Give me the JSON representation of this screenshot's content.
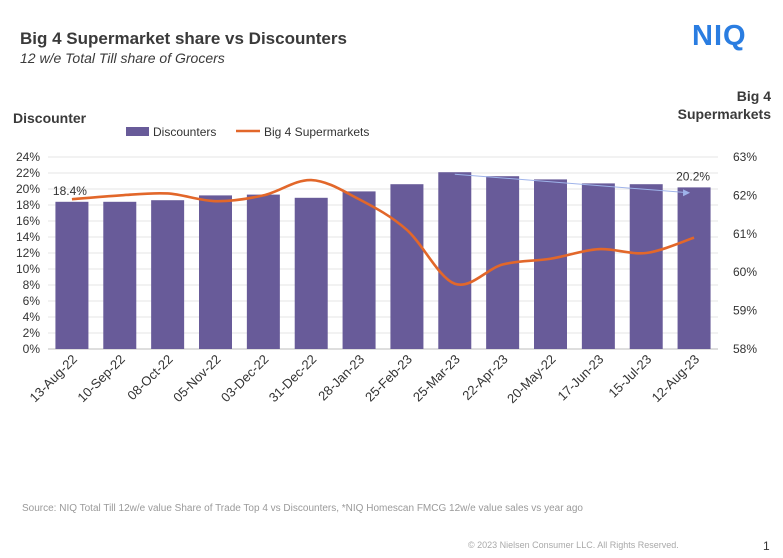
{
  "header": {
    "title": "Big 4 Supermarket share vs Discounters",
    "subtitle": "12 w/e Total Till share of Grocers",
    "logo_text": "NIQ"
  },
  "footer": {
    "source": "Source:  NIQ Total Till 12w/e value Share of Trade Top 4 vs Discounters, *NIQ Homescan FMCG 12w/e value sales vs year ago",
    "copyright": "© 2023 Nielsen Consumer LLC. All Rights Reserved.",
    "page_number": "1"
  },
  "colors": {
    "bar": "#685b99",
    "line": "#e2672a",
    "trend": "#9fb3ea",
    "grid": "#e6e6e6"
  },
  "chart_data": {
    "type": "bar",
    "categories": [
      "13-Aug-22",
      "10-Sep-22",
      "08-Oct-22",
      "05-Nov-22",
      "03-Dec-22",
      "31-Dec-22",
      "28-Jan-23",
      "25-Feb-23",
      "25-Mar-23",
      "22-Apr-23",
      "20-May-22",
      "17-Jun-23",
      "15-Jul-23",
      "12-Aug-23"
    ],
    "y_axis_left": {
      "title": "Discounter",
      "range": [
        0,
        24
      ],
      "ticks": [
        "0%",
        "2%",
        "4%",
        "6%",
        "8%",
        "10%",
        "12%",
        "14%",
        "16%",
        "18%",
        "20%",
        "22%",
        "24%"
      ]
    },
    "y_axis_right": {
      "title": "Big 4 Supermarkets",
      "range": [
        58,
        63
      ],
      "ticks": [
        "58%",
        "59%",
        "60%",
        "61%",
        "62%",
        "63%"
      ]
    },
    "series": [
      {
        "name": "Discounters",
        "type": "bar",
        "axis": "left",
        "values": [
          18.4,
          18.4,
          18.6,
          19.2,
          19.3,
          18.9,
          19.7,
          20.6,
          22.1,
          21.6,
          21.2,
          20.7,
          20.6,
          20.2
        ]
      },
      {
        "name": "Big 4 Supermarkets",
        "type": "line",
        "axis": "right",
        "values": [
          61.9,
          62.0,
          62.05,
          61.85,
          62.0,
          62.4,
          61.9,
          61.1,
          59.7,
          60.2,
          60.35,
          60.6,
          60.5,
          60.9
        ]
      }
    ],
    "data_labels": [
      {
        "text": "18.4%",
        "category": "13-Aug-22"
      },
      {
        "text": "20.2%",
        "category": "12-Aug-23"
      }
    ],
    "legend_position": "top",
    "grid": true
  }
}
